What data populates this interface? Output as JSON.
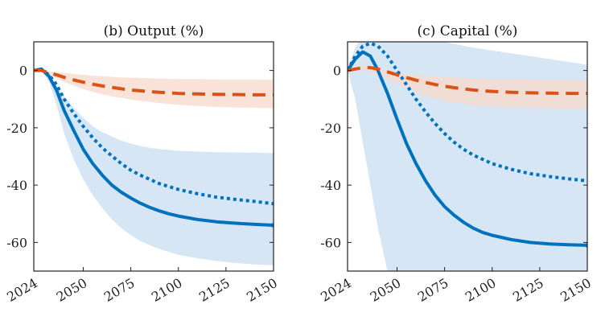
{
  "colors": {
    "blue": "#0072BD",
    "orange": "#D95319",
    "blue_band": "#D6E6F4",
    "orange_band": "#F7D9CC",
    "overlap_band": "#D9D2D5"
  },
  "chart_data": [
    {
      "type": "line",
      "title": "(b) Output (%)",
      "xlabel": "",
      "ylabel": "",
      "xlim": [
        2024,
        2150
      ],
      "ylim": [
        -70,
        10
      ],
      "xticks": [
        "2024",
        "2050",
        "2075",
        "2100",
        "2125",
        "2150"
      ],
      "yticks": [
        "0",
        "-20",
        "-40",
        "-60"
      ],
      "x": [
        2024,
        2028,
        2032,
        2036,
        2040,
        2045,
        2050,
        2055,
        2060,
        2065,
        2070,
        2075,
        2080,
        2085,
        2090,
        2095,
        2100,
        2110,
        2120,
        2130,
        2140,
        2150
      ],
      "series": [
        {
          "style": "solid",
          "color": "blue",
          "values": [
            0,
            0.5,
            -2,
            -7,
            -14,
            -21,
            -27.5,
            -32.5,
            -36.5,
            -40,
            -42.5,
            -44.5,
            -46.3,
            -47.8,
            -49,
            -50,
            -50.8,
            -52,
            -52.8,
            -53.3,
            -53.7,
            -54
          ]
        },
        {
          "style": "dotted",
          "color": "blue",
          "values": [
            0,
            0.3,
            -1.5,
            -5,
            -10,
            -15,
            -19.5,
            -23.5,
            -27,
            -29.8,
            -32.5,
            -34.8,
            -36.5,
            -38,
            -39.5,
            -40.5,
            -41.5,
            -43,
            -44.2,
            -45,
            -45.7,
            -46.5
          ]
        },
        {
          "style": "dashed",
          "color": "orange",
          "values": [
            0,
            0,
            -0.8,
            -1.5,
            -2.4,
            -3.3,
            -4.1,
            -4.8,
            -5.4,
            -5.9,
            -6.4,
            -6.8,
            -7.1,
            -7.4,
            -7.6,
            -7.8,
            -8,
            -8.2,
            -8.3,
            -8.4,
            -8.5,
            -8.5
          ]
        }
      ],
      "bands": [
        {
          "color": "blue_band",
          "upper": [
            0,
            0.5,
            -1.5,
            -5,
            -9,
            -13,
            -16.5,
            -19.5,
            -21.5,
            -23,
            -24.5,
            -25.5,
            -26.3,
            -27,
            -27.4,
            -27.7,
            -28,
            -28.3,
            -28.5,
            -28.6,
            -28.7,
            -28.8
          ],
          "lower": [
            0,
            0,
            -4,
            -12,
            -22,
            -31,
            -38,
            -43.5,
            -48,
            -52,
            -55,
            -57.5,
            -59.5,
            -61,
            -62.3,
            -63.3,
            -64.3,
            -65.5,
            -66.5,
            -67.2,
            -67.7,
            -68
          ]
        },
        {
          "color": "orange_band",
          "upper": [
            0,
            0,
            -0.3,
            -0.6,
            -0.9,
            -1.2,
            -1.5,
            -1.8,
            -2,
            -2.2,
            -2.4,
            -2.5,
            -2.6,
            -2.7,
            -2.8,
            -2.9,
            -3,
            -3,
            -3.1,
            -3.1,
            -3.1,
            -3.2
          ],
          "lower": [
            0,
            0,
            -1.5,
            -2.8,
            -4,
            -5.3,
            -6.5,
            -7.5,
            -8.3,
            -9,
            -9.6,
            -10.1,
            -10.6,
            -11,
            -11.4,
            -11.7,
            -12,
            -12.4,
            -12.7,
            -12.9,
            -13,
            -13.2
          ]
        }
      ]
    },
    {
      "type": "line",
      "title": "(c) Capital (%)",
      "xlabel": "",
      "ylabel": "",
      "xlim": [
        2024,
        2150
      ],
      "ylim": [
        -70,
        10
      ],
      "xticks": [
        "2024",
        "2050",
        "2075",
        "2100",
        "2125",
        "2150"
      ],
      "yticks": [
        "0",
        "-20",
        "-40",
        "-60"
      ],
      "x": [
        2024,
        2028,
        2032,
        2036,
        2040,
        2045,
        2050,
        2055,
        2060,
        2065,
        2070,
        2075,
        2080,
        2085,
        2090,
        2095,
        2100,
        2110,
        2120,
        2130,
        2140,
        2150
      ],
      "series": [
        {
          "style": "solid",
          "color": "blue",
          "values": [
            0,
            4,
            6.5,
            5,
            0,
            -8,
            -17,
            -25.5,
            -32.5,
            -38.5,
            -43.5,
            -47.5,
            -50.5,
            -53,
            -55,
            -56.5,
            -57.5,
            -59,
            -60,
            -60.5,
            -60.8,
            -61
          ]
        },
        {
          "style": "dotted",
          "color": "blue",
          "values": [
            0,
            5,
            8.5,
            9.5,
            8.5,
            5,
            0,
            -5,
            -10,
            -14.5,
            -18.5,
            -22,
            -25,
            -27.5,
            -29.5,
            -31,
            -32.5,
            -34.5,
            -36,
            -37,
            -37.8,
            -38.5
          ]
        },
        {
          "style": "dashed",
          "color": "orange",
          "values": [
            0,
            0.5,
            1,
            1,
            0.5,
            -0.5,
            -1.5,
            -2.5,
            -3.4,
            -4.2,
            -4.9,
            -5.5,
            -6,
            -6.4,
            -6.8,
            -7.1,
            -7.3,
            -7.6,
            -7.8,
            -7.9,
            -8,
            -8
          ]
        }
      ],
      "bands": [
        {
          "color": "blue_band",
          "upper": [
            0,
            8,
            12,
            14,
            15,
            15,
            14.5,
            14,
            13,
            12,
            11,
            10,
            9.3,
            8.6,
            8,
            7.5,
            7,
            6,
            5,
            4,
            3,
            2
          ]
        },
        {
          "color": "orange_band",
          "upper": [
            0,
            0.8,
            1.5,
            1.5,
            0.8,
            -0.2,
            -0.8,
            -1.2,
            -1.6,
            -1.9,
            -2.1,
            -2.3,
            -2.5,
            -2.6,
            -2.7,
            -2.8,
            -2.9,
            -3,
            -3.1,
            -3.2,
            -3.2,
            -3.3
          ],
          "lower": [
            0,
            0,
            0,
            -0.5,
            -1.5,
            -3,
            -4.5,
            -6,
            -7.5,
            -8.8,
            -9.8,
            -10.6,
            -11.2,
            -11.7,
            -12.1,
            -12.4,
            -12.6,
            -12.9,
            -13.1,
            -13.2,
            -13.3,
            -13.4
          ]
        }
      ],
      "blue_band_lower": [
        0,
        -10,
        -25,
        -40,
        -55,
        -70,
        -70,
        -70,
        -70,
        -70,
        -70,
        -70,
        -70,
        -70,
        -70,
        -70,
        -70,
        -70,
        -70,
        -70,
        -70,
        -70
      ]
    }
  ]
}
